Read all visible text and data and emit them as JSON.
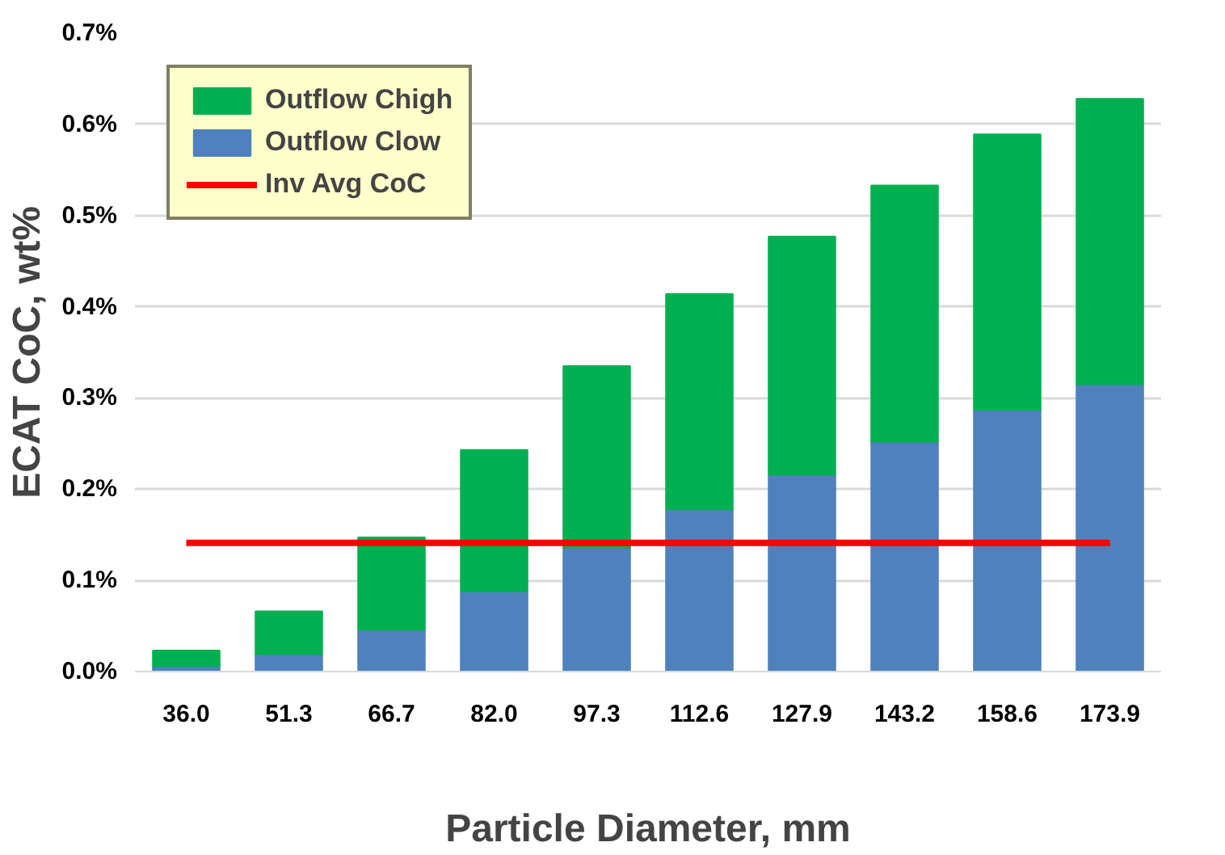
{
  "chart_data": {
    "type": "bar",
    "stacked": true,
    "xlabel": "Particle Diameter, mm",
    "ylabel": "ECAT CoC, wt%",
    "categories": [
      "36.0",
      "51.3",
      "66.7",
      "82.0",
      "97.3",
      "112.6",
      "127.9",
      "143.2",
      "158.6",
      "173.9"
    ],
    "series": [
      {
        "name": "Outflow Clow",
        "color": "#4f81bd",
        "values": [
          0.006,
          0.019,
          0.046,
          0.088,
          0.136,
          0.178,
          0.216,
          0.252,
          0.287,
          0.315
        ]
      },
      {
        "name": "Outflow Chigh",
        "color": "#00b050",
        "values": [
          0.017,
          0.047,
          0.101,
          0.155,
          0.199,
          0.236,
          0.261,
          0.281,
          0.302,
          0.313
        ]
      },
      {
        "name": "Inv Avg CoC",
        "type": "line",
        "color": "#ff0000",
        "values": [
          0.141,
          0.141,
          0.141,
          0.141,
          0.141,
          0.141,
          0.141,
          0.141,
          0.141,
          0.141
        ]
      }
    ],
    "ylim": [
      0,
      0.7
    ],
    "yticks": [
      {
        "value": 0,
        "label": "0.0%"
      },
      {
        "value": 0.1,
        "label": "0.1%"
      },
      {
        "value": 0.2,
        "label": "0.2%"
      },
      {
        "value": 0.3,
        "label": "0.3%"
      },
      {
        "value": 0.4,
        "label": "0.4%"
      },
      {
        "value": 0.5,
        "label": "0.5%"
      },
      {
        "value": 0.6,
        "label": "0.6%"
      },
      {
        "value": 0.7,
        "label": "0.7%"
      }
    ],
    "grid": "y",
    "legend": "top left"
  }
}
